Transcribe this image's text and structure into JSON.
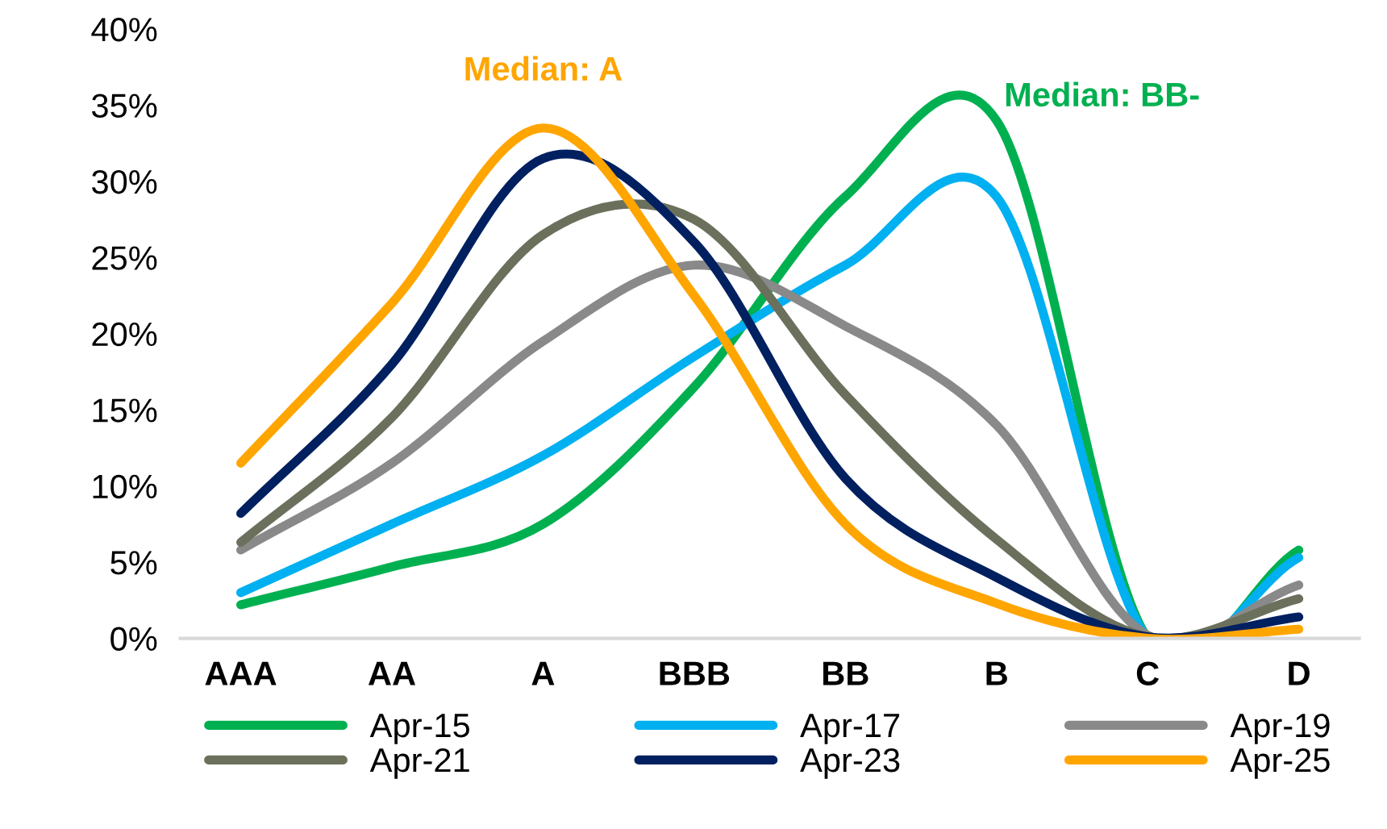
{
  "chart_data": {
    "type": "line",
    "categories": [
      "AAA",
      "AA",
      "A",
      "BBB",
      "BB",
      "B",
      "C",
      "D"
    ],
    "series": [
      {
        "name": "Apr-15",
        "color": "#00b050",
        "values": [
          2.2,
          4.7,
          7.5,
          16.5,
          29,
          34,
          0,
          5.8
        ]
      },
      {
        "name": "Apr-17",
        "color": "#00b0f0",
        "values": [
          3,
          7.5,
          12,
          18.5,
          24.5,
          29,
          0,
          5.3
        ]
      },
      {
        "name": "Apr-19",
        "color": "#898989",
        "values": [
          5.8,
          11.5,
          19.5,
          24.5,
          20.5,
          14,
          0.2,
          3.5
        ]
      },
      {
        "name": "Apr-21",
        "color": "#6b705c",
        "values": [
          6.3,
          14.5,
          26.5,
          27.5,
          16,
          6.5,
          0.1,
          2.6
        ]
      },
      {
        "name": "Apr-23",
        "color": "#002060",
        "values": [
          8.2,
          18,
          31.5,
          26,
          10.5,
          4,
          0.1,
          1.4
        ]
      },
      {
        "name": "Apr-25",
        "color": "#ffa500",
        "values": [
          11.5,
          22,
          33.5,
          22.5,
          7.5,
          2.3,
          0,
          0.6
        ]
      }
    ],
    "ylim": [
      0,
      40
    ],
    "yticks": [
      {
        "value": 0,
        "label": "0%"
      },
      {
        "value": 5,
        "label": "5%"
      },
      {
        "value": 10,
        "label": "10%"
      },
      {
        "value": 15,
        "label": "15%"
      },
      {
        "value": 20,
        "label": "20%"
      },
      {
        "value": 25,
        "label": "25%"
      },
      {
        "value": 30,
        "label": "30%"
      },
      {
        "value": 35,
        "label": "35%"
      },
      {
        "value": 40,
        "label": "40%"
      }
    ],
    "annotations": [
      "Median: A",
      "Median: BB-"
    ],
    "grid": false,
    "legend": "bottom",
    "marker": "none",
    "line_style": "solid"
  }
}
